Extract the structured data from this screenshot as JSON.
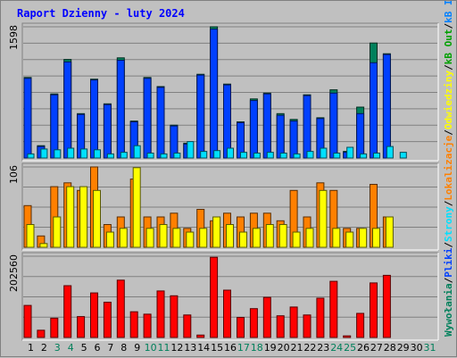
{
  "chart_data": {
    "type": "bar",
    "title": "Raport Dzienny -  luty 2024",
    "title_color": "#0000ff",
    "days": [
      "1",
      "2",
      "3",
      "4",
      "5",
      "6",
      "7",
      "8",
      "9",
      "10",
      "11",
      "12",
      "13",
      "14",
      "15",
      "16",
      "17",
      "18",
      "19",
      "20",
      "21",
      "22",
      "23",
      "24",
      "25",
      "26",
      "27",
      "28",
      "29",
      "30",
      "31"
    ],
    "weekend_days": [
      "3",
      "4",
      "10",
      "11",
      "17",
      "18",
      "24",
      "25",
      "31"
    ],
    "weekday_color": "#000000",
    "weekend_color": "#00805b",
    "panels": [
      {
        "id": "hits",
        "ymax_label": "1598",
        "ymax": 1598,
        "series": [
          {
            "name": "Wywołania",
            "color": "#00805b",
            "values": [
              980,
              150,
              780,
              1200,
              540,
              960,
              660,
              1220,
              450,
              980,
              870,
              400,
              180,
              1020,
              1600,
              900,
              440,
              720,
              790,
              540,
              470,
              770,
              490,
              830,
              80,
              620,
              1400,
              1270,
              null,
              null,
              null
            ]
          },
          {
            "name": "Pliki",
            "color": "#0040ff",
            "values": [
              970,
              140,
              770,
              1170,
              530,
              950,
              650,
              1190,
              440,
              970,
              860,
              390,
              170,
              1010,
              1570,
              890,
              430,
              700,
              780,
              520,
              450,
              760,
              480,
              790,
              70,
              540,
              1160,
              1260,
              null,
              null,
              null
            ]
          },
          {
            "name": "Strony",
            "color": "#00e0ff",
            "values": [
              50,
              110,
              100,
              120,
              110,
              100,
              50,
              70,
              150,
              60,
              50,
              60,
              200,
              80,
              90,
              120,
              70,
              60,
              70,
              60,
              50,
              80,
              120,
              60,
              130,
              50,
              60,
              140,
              70,
              null,
              null
            ]
          }
        ]
      },
      {
        "id": "visits",
        "ymax_label": "106",
        "ymax": 106,
        "series": [
          {
            "name": "Lokalizacje",
            "color": "#ff8000",
            "values": [
              55,
              15,
              80,
              85,
              75,
              110,
              30,
              40,
              90,
              40,
              40,
              45,
              25,
              50,
              35,
              45,
              40,
              45,
              45,
              35,
              75,
              40,
              85,
              75,
              25,
              25,
              83,
              40
            ]
          },
          {
            "name": "Odwiedziny",
            "color": "#ffff00",
            "values": [
              30,
              5,
              40,
              80,
              80,
              75,
              20,
              25,
              105,
              25,
              30,
              25,
              20,
              25,
              40,
              30,
              20,
              25,
              30,
              30,
              20,
              25,
              75,
              25,
              20,
              25,
              25,
              40
            ]
          }
        ]
      },
      {
        "id": "kb",
        "ymax_label": "202560",
        "ymax": 202560,
        "series": [
          {
            "name": "kB F",
            "color": "#ff0000",
            "values": [
              80000,
              18000,
              48000,
              129000,
              52000,
              111000,
              88000,
              143000,
              64000,
              58000,
              116000,
              104000,
              56000,
              6000,
              200000,
              118000,
              50000,
              72000,
              100000,
              54000,
              76000,
              56000,
              98000,
              140000,
              4000,
              60000,
              136000,
              155000
            ]
          }
        ]
      }
    ],
    "legend": [
      {
        "text": "Wywołania",
        "color": "#00805b"
      },
      {
        "text": "/",
        "color": "#000000"
      },
      {
        "text": "Pliki",
        "color": "#0040ff"
      },
      {
        "text": "/",
        "color": "#000000"
      },
      {
        "text": "Strony",
        "color": "#00e0ff"
      },
      {
        "text": "/",
        "color": "#000000"
      },
      {
        "text": "Lokalizacje",
        "color": "#ff8000"
      },
      {
        "text": "/",
        "color": "#000000"
      },
      {
        "text": "Odwiedziny",
        "color": "#ffff00"
      },
      {
        "text": "/",
        "color": "#000000"
      },
      {
        "text": "kB Out",
        "color": "#00a000"
      },
      {
        "text": "/",
        "color": "#000000"
      },
      {
        "text": "kB In",
        "color": "#0080ff"
      },
      {
        "text": "/",
        "color": "#000000"
      },
      {
        "text": "kB F",
        "color": "#ff0000"
      }
    ],
    "background": "#c0c0c0",
    "plot_background": "#c0c0c0",
    "grid": true
  }
}
